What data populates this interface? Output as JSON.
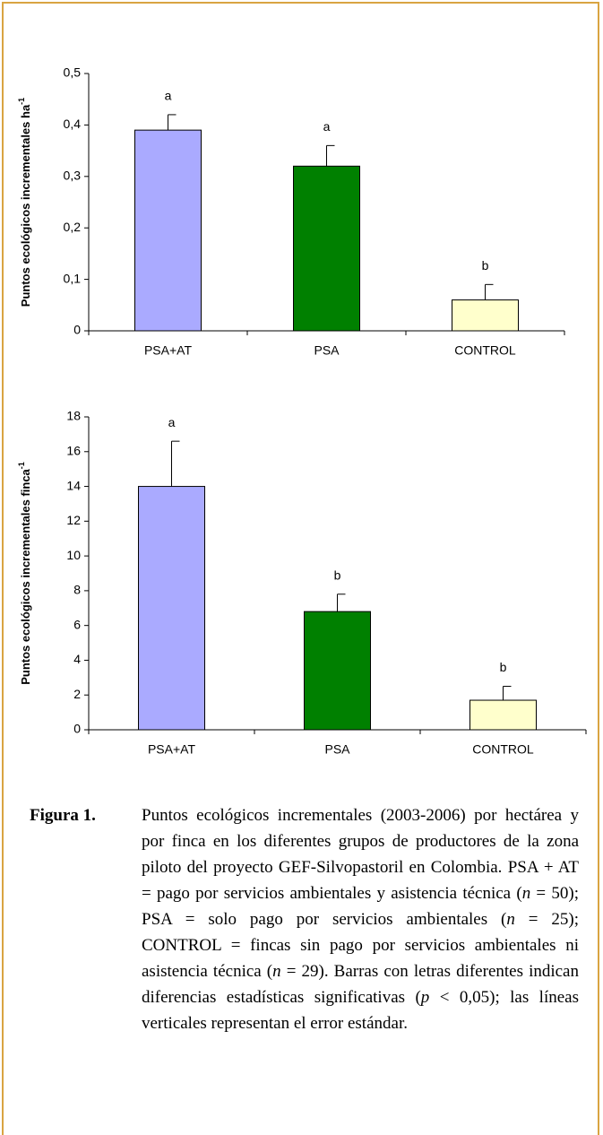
{
  "chart_data": [
    {
      "type": "bar",
      "y_label": "Puntos ecológicos incrementales ha",
      "y_label_sup": "-1",
      "categories": [
        "PSA+AT",
        "PSA",
        "CONTROL"
      ],
      "values": [
        0.39,
        0.32,
        0.06
      ],
      "errors": [
        0.03,
        0.04,
        0.03
      ],
      "letters": [
        "a",
        "a",
        "b"
      ],
      "colors": [
        "#aaaaff",
        "#008000",
        "#ffffcc"
      ],
      "ylim": [
        0,
        0.5
      ],
      "yticks": [
        0,
        {
          "value": 0.1,
          "label": "0,1"
        },
        {
          "value": 0.2,
          "label": "0,2"
        },
        {
          "value": 0.3,
          "label": "0,3"
        },
        {
          "value": 0.4,
          "label": "0,4"
        },
        {
          "value": 0.5,
          "label": "0,5"
        }
      ]
    },
    {
      "type": "bar",
      "y_label": "Puntos ecológicos incrementales finca",
      "y_label_sup": "-1",
      "categories": [
        "PSA+AT",
        "PSA",
        "CONTROL"
      ],
      "values": [
        14,
        6.8,
        1.7
      ],
      "errors": [
        2.6,
        1.0,
        0.8
      ],
      "letters": [
        "a",
        "b",
        "b"
      ],
      "colors": [
        "#aaaaff",
        "#008000",
        "#ffffcc"
      ],
      "ylim": [
        0,
        18
      ],
      "yticks": [
        0,
        2,
        4,
        6,
        8,
        10,
        12,
        14,
        16,
        18
      ]
    }
  ],
  "caption": {
    "label": "Figura 1.",
    "runs": [
      {
        "text": "Puntos ecológicos incrementales (2003-2006) por hectárea y por finca en los diferentes grupos de productores de la zona piloto del proyecto GEF-Silvopastoril en Colombia. PSA + AT = pago por servicios ambientales y asistencia técnica ("
      },
      {
        "text": "n",
        "italic": true
      },
      {
        "text": " = 50); PSA = solo pago por servicios ambientales ("
      },
      {
        "text": "n",
        "italic": true
      },
      {
        "text": " = 25); CONTROL = fincas sin pago por servicios ambientales ni asistencia técnica ("
      },
      {
        "text": "n",
        "italic": true
      },
      {
        "text": " = 29). Barras con letras diferentes indican diferencias estadísticas significativas ("
      },
      {
        "text": "p",
        "italic": true
      },
      {
        "text": " < 0,05); las líneas verticales representan el error estándar."
      }
    ]
  }
}
